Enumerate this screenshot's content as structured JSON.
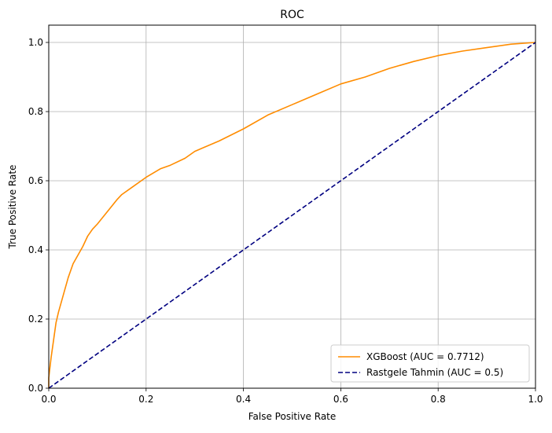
{
  "chart_data": {
    "type": "line",
    "title": "ROC",
    "xlabel": "False Positive Rate",
    "ylabel": "True Positive Rate",
    "xlim": [
      0.0,
      1.0
    ],
    "ylim": [
      0.0,
      1.05
    ],
    "xticks": [
      0.0,
      0.2,
      0.4,
      0.6,
      0.8,
      1.0
    ],
    "yticks": [
      0.0,
      0.2,
      0.4,
      0.6,
      0.8,
      1.0
    ],
    "xtick_labels": [
      "0.0",
      "0.2",
      "0.4",
      "0.6",
      "0.8",
      "1.0"
    ],
    "ytick_labels": [
      "0.0",
      "0.2",
      "0.4",
      "0.6",
      "0.8",
      "1.0"
    ],
    "grid": true,
    "legend_position": "bottom-right",
    "series": [
      {
        "name": "XGBoost (AUC = 0.7712)",
        "color": "#ff8c00",
        "style": "solid",
        "x": [
          0.0,
          0.0,
          0.005,
          0.01,
          0.015,
          0.02,
          0.03,
          0.04,
          0.05,
          0.06,
          0.07,
          0.075,
          0.08,
          0.09,
          0.1,
          0.12,
          0.14,
          0.15,
          0.17,
          0.2,
          0.23,
          0.25,
          0.28,
          0.3,
          0.35,
          0.4,
          0.45,
          0.5,
          0.55,
          0.6,
          0.65,
          0.7,
          0.75,
          0.8,
          0.85,
          0.9,
          0.95,
          1.0
        ],
        "y": [
          0.0,
          0.03,
          0.09,
          0.14,
          0.19,
          0.22,
          0.27,
          0.32,
          0.36,
          0.385,
          0.41,
          0.425,
          0.44,
          0.46,
          0.475,
          0.51,
          0.545,
          0.56,
          0.58,
          0.61,
          0.635,
          0.645,
          0.665,
          0.685,
          0.715,
          0.75,
          0.79,
          0.82,
          0.85,
          0.88,
          0.9,
          0.925,
          0.945,
          0.962,
          0.975,
          0.985,
          0.995,
          1.0
        ]
      },
      {
        "name": "Rastgele Tahmin (AUC = 0.5)",
        "color": "#000080",
        "style": "dashed",
        "x": [
          0.0,
          1.0
        ],
        "y": [
          0.0,
          1.0
        ]
      }
    ]
  }
}
